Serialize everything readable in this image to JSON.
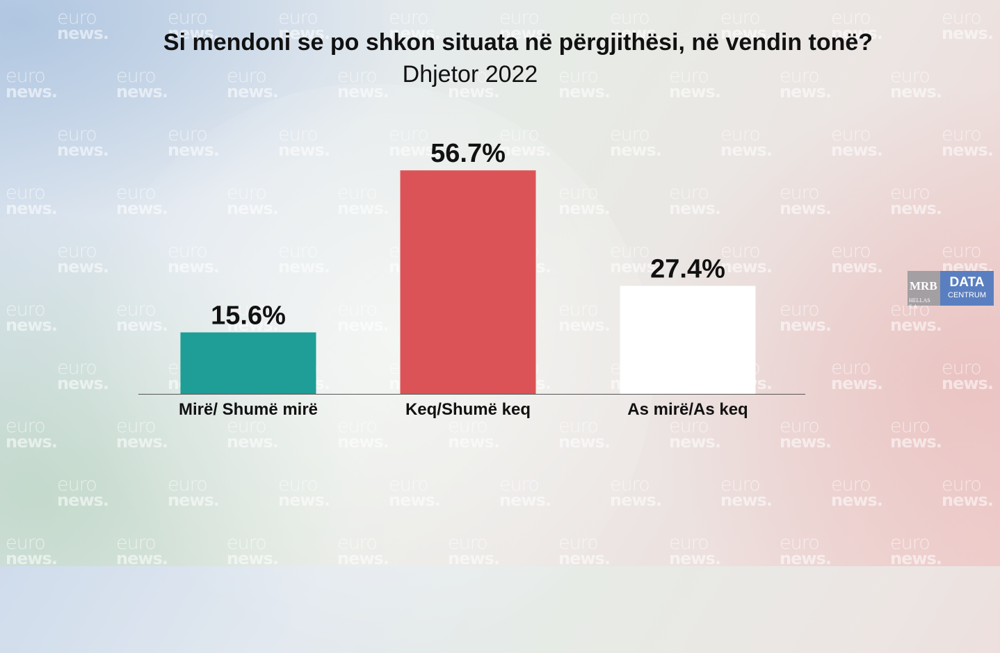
{
  "watermark": {
    "line1": "euro",
    "line2": "news."
  },
  "chart_data": {
    "type": "bar",
    "title": "Si mendoni se po shkon situata në përgjithësi, në vendin tonë?",
    "subtitle": "Dhjetor 2022",
    "categories": [
      "Mirë/ Shumë mirë",
      "Keq/Shumë keq",
      "As mirë/As keq"
    ],
    "values": [
      15.6,
      56.7,
      27.4
    ],
    "value_labels": [
      "15.6%",
      "56.7%",
      "27.4%"
    ],
    "colors": [
      "#1e9e96",
      "#dc5357",
      "#ffffff"
    ],
    "ylim": [
      0,
      60
    ],
    "grid": false,
    "legend": "none"
  },
  "logo": {
    "left": "MRB",
    "left_sub": "HELLAS S.A.",
    "right_top": "DATA",
    "right_bottom": "CENTRUM"
  }
}
